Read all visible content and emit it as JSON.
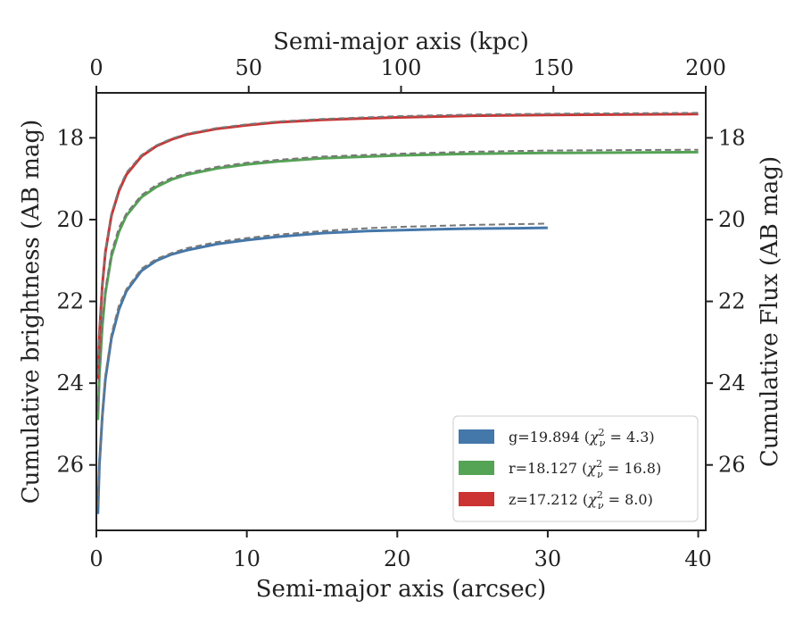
{
  "chart_data": {
    "type": "line",
    "title": "",
    "xlabel": "Semi-major axis (arcsec)",
    "ylabel": "Cumulative brightness (AB mag)",
    "xlabel_top": "Semi-major axis (kpc)",
    "ylabel_right": "Cumulative Flux (AB mag)",
    "xlim": [
      0,
      40.5
    ],
    "ylim": [
      27.6,
      16.9
    ],
    "y_inverted": true,
    "xlim_top": [
      0,
      200
    ],
    "grid": false,
    "legend_position": "lower-right",
    "x_ticks": [
      "0",
      "10",
      "20",
      "30",
      "40"
    ],
    "x_top_ticks": [
      "0",
      "50",
      "100",
      "150",
      "200"
    ],
    "y_ticks": [
      "18",
      "20",
      "22",
      "24",
      "26"
    ],
    "series": [
      {
        "name": "g=19.894 (χ²_ν = 4.3)",
        "label_main": "g=19.894 (",
        "label_chi": "χ",
        "label_sup": "2",
        "label_sub": "ν",
        "label_tail": " = 4.3)",
        "color": "#4477aa",
        "x": [
          0.1,
          0.2,
          0.4,
          0.6,
          1.0,
          1.5,
          2.0,
          3.0,
          4.0,
          5.0,
          6.0,
          8.0,
          10.0,
          12.0,
          15.0,
          18.0,
          20.0,
          22.0,
          25.0,
          28.0,
          30.0
        ],
        "values": [
          27.2,
          26.0,
          24.8,
          23.9,
          22.9,
          22.2,
          21.75,
          21.25,
          21.0,
          20.85,
          20.75,
          20.6,
          20.5,
          20.42,
          20.33,
          20.28,
          20.26,
          20.24,
          20.22,
          20.21,
          20.2
        ],
        "model_values": [
          27.0,
          25.9,
          24.7,
          23.8,
          22.8,
          22.1,
          21.7,
          21.2,
          20.96,
          20.82,
          20.7,
          20.55,
          20.45,
          20.37,
          20.28,
          20.21,
          20.18,
          20.16,
          20.13,
          20.11,
          20.1
        ]
      },
      {
        "name": "r=18.127 (χ²_ν = 16.8)",
        "label_main": "r=18.127 (",
        "label_chi": "χ",
        "label_sup": "2",
        "label_sub": "ν",
        "label_tail": " = 16.8)",
        "color": "#55a355",
        "x": [
          0.1,
          0.2,
          0.4,
          0.6,
          1.0,
          1.5,
          2.0,
          3.0,
          4.0,
          5.0,
          6.0,
          8.0,
          10.0,
          12.0,
          15.0,
          20.0,
          25.0,
          30.0,
          35.0,
          40.0
        ],
        "values": [
          24.9,
          23.8,
          22.6,
          21.8,
          20.9,
          20.3,
          19.9,
          19.45,
          19.2,
          19.02,
          18.9,
          18.75,
          18.65,
          18.58,
          18.5,
          18.43,
          18.39,
          18.37,
          18.36,
          18.35
        ],
        "model_values": [
          24.7,
          23.7,
          22.5,
          21.7,
          20.8,
          20.2,
          19.85,
          19.4,
          19.15,
          18.98,
          18.86,
          18.71,
          18.61,
          18.54,
          18.46,
          18.39,
          18.34,
          18.31,
          18.3,
          18.29
        ]
      },
      {
        "name": "z=17.212 (χ²_ν = 8.0)",
        "label_main": "z=17.212 (",
        "label_chi": "χ",
        "label_sup": "2",
        "label_sub": "ν",
        "label_tail": " = 8.0)",
        "color": "#cc3333",
        "x": [
          0.1,
          0.2,
          0.4,
          0.6,
          1.0,
          1.5,
          2.0,
          3.0,
          4.0,
          5.0,
          6.0,
          8.0,
          10.0,
          12.0,
          15.0,
          20.0,
          25.0,
          30.0,
          35.0,
          40.0
        ],
        "values": [
          23.9,
          22.8,
          21.6,
          20.8,
          19.9,
          19.3,
          18.9,
          18.45,
          18.2,
          18.04,
          17.92,
          17.78,
          17.69,
          17.62,
          17.56,
          17.5,
          17.46,
          17.44,
          17.43,
          17.42
        ],
        "model_values": [
          23.8,
          22.7,
          21.5,
          20.75,
          19.85,
          19.25,
          18.85,
          18.42,
          18.18,
          18.02,
          17.9,
          17.76,
          17.67,
          17.6,
          17.54,
          17.47,
          17.43,
          17.41,
          17.4,
          17.39
        ]
      }
    ],
    "model_line_color": "#777777"
  }
}
